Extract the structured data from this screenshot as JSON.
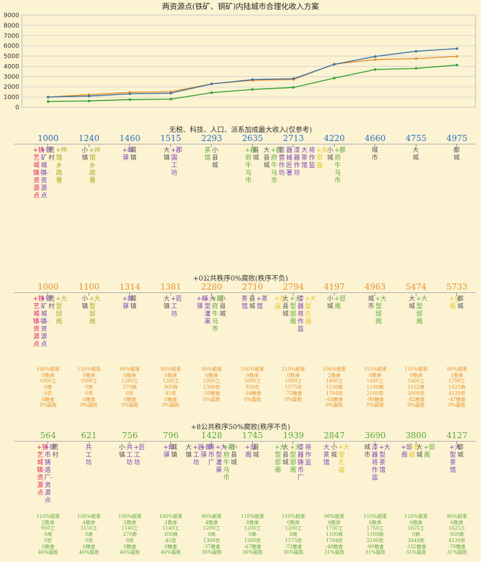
{
  "chart_data": {
    "type": "line",
    "title": "两资源点(铁矿、铜矿)内陆城市合理化收入方案",
    "yticks": [
      0,
      1000,
      2000,
      3000,
      4000,
      5000,
      6000,
      7000,
      8000,
      9000
    ],
    "ylim": [
      0,
      9000
    ],
    "grid": true,
    "series": [
      {
        "color": "#e8902a",
        "values": [
          1000,
          1240,
          1460,
          1515,
          2293,
          2635,
          2713,
          4220,
          4660,
          4755,
          4975
        ]
      },
      {
        "color": "#3a6fa8",
        "values": [
          1000,
          1100,
          1314,
          1381,
          2280,
          2710,
          2794,
          4197,
          4963,
          5474,
          5733
        ]
      },
      {
        "color": "#30a030",
        "values": [
          564,
          621,
          756,
          796,
          1428,
          1745,
          1939,
          2847,
          3690,
          3800,
          4127
        ]
      }
    ]
  },
  "palette": {
    "red": "#e0245a",
    "purple": "#7a3fb5",
    "gray": "#555555",
    "green": "#5aa83a",
    "olive": "#a8a81e",
    "yellow": "#e6c21a",
    "orange": "#e8902a",
    "blue": "#2a6fc2"
  },
  "sections": [
    {
      "title": "无税、科技、人口、派系加成最大收入(仅参考)",
      "numColor": "blue",
      "columns": [
        {
          "value": "1000",
          "items": [
            {
              "t": "+铁艺城镇-资源点",
              "c": "red"
            },
            {
              "t": "+铜矿城镇-资源点",
              "c": "purple"
            },
            {
              "t": "荒村",
              "c": "gray"
            },
            {
              "t": "+州馆乡政署",
              "c": "olive"
            }
          ]
        },
        {
          "value": "1240",
          "items": [
            {
              "t": "小镇",
              "c": "gray"
            },
            {
              "t": "+州馆乡政署",
              "c": "olive"
            }
          ]
        },
        {
          "value": "1460",
          "items": [
            {
              "t": "+邮驿",
              "c": "purple"
            },
            {
              "t": "城镇",
              "c": "gray"
            }
          ]
        },
        {
          "value": "1515",
          "items": [
            {
              "t": "大镇",
              "c": "gray"
            },
            {
              "t": "+郡国工坊",
              "c": "purple"
            }
          ]
        },
        {
          "value": "2293",
          "items": [
            {
              "t": "茶馆",
              "c": "green"
            },
            {
              "t": "小县城",
              "c": "gray"
            }
          ]
        },
        {
          "value": "2635",
          "items": [
            {
              "t": "+郡府牛马市",
              "c": "green"
            },
            {
              "t": "县城",
              "c": "gray"
            }
          ]
        },
        {
          "value": "2713",
          "items": [
            {
              "t": "大县城",
              "c": "gray"
            },
            {
              "t": "+郡府牛马市",
              "c": "green"
            },
            {
              "t": "官营作坊",
              "c": "purple"
            },
            {
              "t": "器械匠署",
              "c": "purple"
            },
            {
              "t": "漆器作坊",
              "c": "purple"
            },
            {
              "t": "大茶馆",
              "c": "purple"
            },
            {
              "t": "将作监",
              "c": "purple"
            },
            {
              "t": "+大宗庙",
              "c": "yellow"
            }
          ]
        },
        {
          "value": "4220",
          "items": [
            {
              "t": "小城",
              "c": "gray"
            },
            {
              "t": "+郡府牛马市",
              "c": "green"
            }
          ]
        },
        {
          "value": "4660",
          "items": [
            {
              "t": "城市",
              "c": "gray"
            }
          ]
        },
        {
          "value": "4755",
          "items": [
            {
              "t": "大城",
              "c": "gray"
            }
          ]
        },
        {
          "value": "4975",
          "items": [
            {
              "t": "都城",
              "c": "gray"
            }
          ]
        }
      ]
    },
    {
      "title": "+0公共秩序0%腐败(秩序不负)",
      "numColor": "orange",
      "statsColor": "orange",
      "columns": [
        {
          "value": "1000",
          "items": [
            {
              "t": "+铁艺城镇-资源点",
              "c": "red"
            },
            {
              "t": "+铜矿城镇-资源点",
              "c": "purple"
            },
            {
              "t": "荒村",
              "c": "gray"
            },
            {
              "t": "+大型邸阁",
              "c": "olive"
            }
          ],
          "stats": [
            "100%税率",
            "0秩序",
            "1000工",
            "0商",
            "0农",
            "0粮食",
            "0%腐败"
          ]
        },
        {
          "value": "1100",
          "items": [
            {
              "t": "小镇",
              "c": "gray"
            },
            {
              "t": "+大型邸阁",
              "c": "olive"
            }
          ],
          "stats": [
            "110%税率",
            "0秩序",
            "1000工",
            "0商",
            "0农",
            "0粮食",
            "0%腐败"
          ]
        },
        {
          "value": "1314",
          "items": [
            {
              "t": "+邮驿",
              "c": "purple"
            },
            {
              "t": "城镇",
              "c": "gray"
            }
          ],
          "stats": [
            "90%税率",
            "0秩序",
            "1200工",
            "270商",
            "0农",
            "0粮食",
            "0%腐败"
          ]
        },
        {
          "value": "1381",
          "items": [
            {
              "t": "大镇",
              "c": "gray"
            },
            {
              "t": "+匠工坊",
              "c": "purple"
            }
          ],
          "stats": [
            "90%税率",
            "0秩序",
            "1200工",
            "300商",
            "45农",
            "0粮食",
            "0%腐败"
          ]
        },
        {
          "value": "2280",
          "items": [
            {
              "t": "+邮驿",
              "c": "purple"
            },
            {
              "t": "+大型灌渠",
              "c": "purple"
            },
            {
              "t": "+郡府牛马市",
              "c": "green"
            },
            {
              "t": "小县城",
              "c": "gray"
            }
          ],
          "stats": [
            "90%税率",
            "0秩序",
            "1000工",
            "1300农",
            "-50粮食",
            "0%腐败"
          ]
        },
        {
          "value": "2710",
          "items": [
            {
              "t": "茶馆",
              "c": "purple"
            },
            {
              "t": "县城",
              "c": "gray"
            },
            {
              "t": "+茶馆",
              "c": "purple"
            }
          ],
          "stats": [
            "100%税率",
            "0秩序",
            "1000工",
            "830农",
            "-54粮食",
            "0%腐败"
          ]
        },
        {
          "value": "2794",
          "items": [
            {
              "t": "+孔庙",
              "c": "yellow"
            },
            {
              "t": "大县城",
              "c": "gray"
            },
            {
              "t": "+大型邸阁",
              "c": "green"
            },
            {
              "t": "漆器将作监",
              "c": "purple"
            },
            {
              "t": "+大型孔庙",
              "c": "yellow"
            }
          ],
          "stats": [
            "110%税率",
            "0秩序",
            "1000工",
            "1575农",
            "-72粮食",
            "0%腐败"
          ]
        },
        {
          "value": "4197",
          "items": [
            {
              "t": "小城",
              "c": "gray"
            },
            {
              "t": "+邸阁",
              "c": "green"
            }
          ],
          "stats": [
            "100%税率",
            "2秩序",
            "1400工",
            "1100商",
            "1784农",
            "-64粮食",
            "0%腐败"
          ]
        },
        {
          "value": "4963",
          "items": [
            {
              "t": "城市",
              "c": "gray"
            },
            {
              "t": "+大型邸阁",
              "c": "green"
            }
          ],
          "stats": [
            "110%税率",
            "0秩序",
            "1400工",
            "1100商",
            "2100农",
            "-90粮食",
            "0%腐败"
          ]
        },
        {
          "value": "5474",
          "items": [
            {
              "t": "大城",
              "c": "gray"
            },
            {
              "t": "+大型邸阁",
              "c": "green"
            }
          ],
          "stats": [
            "110%税率",
            "0秩序",
            "1400工",
            "1162商",
            "3000农",
            "-82粮食",
            "0%腐败"
          ]
        },
        {
          "value": "5733",
          "items": [
            {
              "t": "+宫殿",
              "c": "yellow"
            },
            {
              "t": "都城",
              "c": "gray"
            }
          ],
          "stats": [
            "90%税率",
            "1秩序",
            "1700工",
            "1425商",
            "4139农",
            "-47粮食",
            "0%腐败"
          ]
        }
      ]
    },
    {
      "title": "+8公共秩序50%腐败(秩序不负)",
      "numColor": "green",
      "statsColor": "green",
      "columns": [
        {
          "value": "564",
          "items": [
            {
              "t": "+铁艺城镇-资源点",
              "c": "red"
            },
            {
              "t": "+铜币铸造厂-资源点",
              "c": "purple"
            },
            {
              "t": "荒村",
              "c": "gray"
            }
          ],
          "stats": [
            "110%税率",
            "2秩序",
            "950工",
            "0商",
            "0农",
            "0粮食",
            "46%腐败"
          ]
        },
        {
          "value": "621",
          "items": [
            {
              "t": "共工坊",
              "c": "purple"
            }
          ],
          "stats": [
            "100%税率",
            "4秩序",
            "1150工",
            "0商",
            "0农",
            "0粮食",
            "46%腐败"
          ]
        },
        {
          "value": "756",
          "items": [
            {
              "t": "小镇",
              "c": "gray"
            },
            {
              "t": "共工坊",
              "c": "purple"
            },
            {
              "t": "+匠工坊",
              "c": "purple"
            }
          ],
          "stats": [
            "100%税率",
            "2秩序",
            "1140工",
            "270商",
            "0农",
            "0粮食",
            "46%腐败"
          ]
        },
        {
          "value": "796",
          "items": [
            {
              "t": "+邮驿",
              "c": "purple"
            },
            {
              "t": "城镇",
              "c": "gray"
            }
          ],
          "stats": [
            "100%税率",
            "2秩序",
            "1140工",
            "300商",
            "45农",
            "0粮食",
            "46%腐败"
          ]
        },
        {
          "value": "1428",
          "items": [
            {
              "t": "大镇",
              "c": "gray"
            },
            {
              "t": "+匠工坊",
              "c": "purple"
            },
            {
              "t": "+邮驿",
              "c": "purple"
            },
            {
              "t": "铸币广",
              "c": "purple"
            },
            {
              "t": "+大型灌渠",
              "c": "purple"
            },
            {
              "t": "+郡府牛马市",
              "c": "green"
            },
            {
              "t": "小县城",
              "c": "gray"
            }
          ],
          "stats": [
            "90%税率",
            "4秩序",
            "1200工",
            "0商",
            "1300农",
            "-37粮食",
            "36%腐败"
          ]
        },
        {
          "value": "1745",
          "items": [
            {
              "t": "+邸阁",
              "c": "purple"
            },
            {
              "t": "县城",
              "c": "gray"
            }
          ],
          "stats": [
            "110%税率",
            "0秩序",
            "1200工",
            "0商",
            "1300农",
            "-67粮食",
            "36%腐败"
          ]
        },
        {
          "value": "1939",
          "items": [
            {
              "t": "+大型邸阁",
              "c": "green"
            },
            {
              "t": "大县城",
              "c": "gray"
            },
            {
              "t": "+大型邸阁",
              "c": "green"
            },
            {
              "t": "漆器铸币厂",
              "c": "purple"
            },
            {
              "t": "将作监",
              "c": "purple"
            }
          ],
          "stats": [
            "110%税率",
            "0秩序",
            "1200工",
            "0商",
            "1575农",
            "-72粮食",
            "36%腐败"
          ]
        },
        {
          "value": "2847",
          "items": [
            {
              "t": "大茶馆",
              "c": "purple"
            },
            {
              "t": "小城",
              "c": "gray"
            },
            {
              "t": "+大型孔庙",
              "c": "yellow"
            }
          ],
          "stats": [
            "90%税率",
            "0秩序",
            "1750工",
            "1100商",
            "1784农",
            "-48粮食",
            "31%腐败"
          ]
        },
        {
          "value": "3690",
          "items": [
            {
              "t": "城市",
              "c": "gray"
            },
            {
              "t": "漆器将作监",
              "c": "purple"
            },
            {
              "t": "+大型茶馆",
              "c": "purple"
            }
          ],
          "stats": [
            "110%税率",
            "0秩序",
            "1750工",
            "1100商",
            "2100农",
            "-90粮食",
            "31%腐败"
          ]
        },
        {
          "value": "3800",
          "items": [
            {
              "t": "+邸阁",
              "c": "purple"
            },
            {
              "t": "+宫殿",
              "c": "yellow"
            },
            {
              "t": "大城",
              "c": "gray"
            },
            {
              "t": "+邸阁",
              "c": "green"
            }
          ],
          "stats": [
            "110%税率",
            "0秩序",
            "1625工",
            "0商",
            "3449农",
            "-102粮食",
            "31%腐败"
          ]
        },
        {
          "value": "4127",
          "items": [
            {
              "t": "+大型茶馆",
              "c": "purple"
            },
            {
              "t": "都城",
              "c": "gray"
            }
          ],
          "stats": [
            "90%税率",
            "6秩序",
            "1625工",
            "950商",
            "4139农",
            "-70粮食",
            "31%腐败"
          ]
        }
      ]
    }
  ]
}
